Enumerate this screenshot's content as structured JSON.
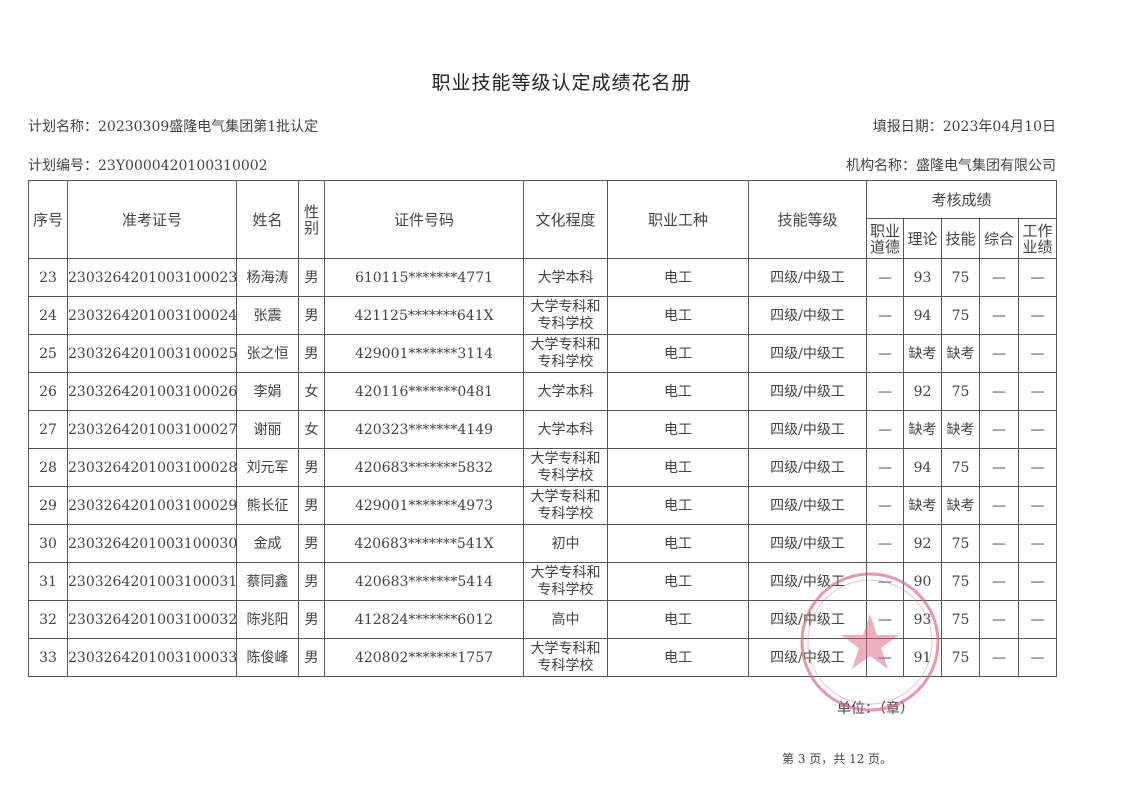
{
  "title": "职业技能等级认定成绩花名册",
  "plan_name": "计划名称：20230309盛隆电气集团第1批认定",
  "report_date": "填报日期：2023年04月10日",
  "plan_number": "计划编号：23Y0000420100310002",
  "org_name": "机构名称：盛隆电气集团有限公司",
  "headers": {
    "seq": "序号",
    "ticket": "准考证号",
    "name": "姓名",
    "gender": "性别",
    "id": "证件号码",
    "education": "文化程度",
    "occupation": "职业工种",
    "level": "技能等级",
    "scores": "考核成绩",
    "ethics": "职业道德",
    "theory": "理论",
    "skill": "技能",
    "overall": "综合",
    "performance": "工作业绩"
  },
  "rows": [
    {
      "seq": "23",
      "ticket": "2303264201003100023",
      "name": "杨海涛",
      "gender": "男",
      "id": "610115*******4771",
      "education": "大学本科",
      "occupation": "电工",
      "level": "四级/中级工",
      "ethics": "—",
      "theory": "93",
      "skill": "75",
      "overall": "—",
      "performance": "—"
    },
    {
      "seq": "24",
      "ticket": "2303264201003100024",
      "name": "张震",
      "gender": "男",
      "id": "421125*******641X",
      "education": "大学专科和专科学校",
      "occupation": "电工",
      "level": "四级/中级工",
      "ethics": "—",
      "theory": "94",
      "skill": "75",
      "overall": "—",
      "performance": "—"
    },
    {
      "seq": "25",
      "ticket": "2303264201003100025",
      "name": "张之恒",
      "gender": "男",
      "id": "429001*******3114",
      "education": "大学专科和专科学校",
      "occupation": "电工",
      "level": "四级/中级工",
      "ethics": "—",
      "theory": "缺考",
      "skill": "缺考",
      "overall": "—",
      "performance": "—"
    },
    {
      "seq": "26",
      "ticket": "2303264201003100026",
      "name": "李娟",
      "gender": "女",
      "id": "420116*******0481",
      "education": "大学本科",
      "occupation": "电工",
      "level": "四级/中级工",
      "ethics": "—",
      "theory": "92",
      "skill": "75",
      "overall": "—",
      "performance": "—"
    },
    {
      "seq": "27",
      "ticket": "2303264201003100027",
      "name": "谢丽",
      "gender": "女",
      "id": "420323*******4149",
      "education": "大学本科",
      "occupation": "电工",
      "level": "四级/中级工",
      "ethics": "—",
      "theory": "缺考",
      "skill": "缺考",
      "overall": "—",
      "performance": "—"
    },
    {
      "seq": "28",
      "ticket": "2303264201003100028",
      "name": "刘元军",
      "gender": "男",
      "id": "420683*******5832",
      "education": "大学专科和专科学校",
      "occupation": "电工",
      "level": "四级/中级工",
      "ethics": "—",
      "theory": "94",
      "skill": "75",
      "overall": "—",
      "performance": "—"
    },
    {
      "seq": "29",
      "ticket": "2303264201003100029",
      "name": "熊长征",
      "gender": "男",
      "id": "429001*******4973",
      "education": "大学专科和专科学校",
      "occupation": "电工",
      "level": "四级/中级工",
      "ethics": "—",
      "theory": "缺考",
      "skill": "缺考",
      "overall": "—",
      "performance": "—"
    },
    {
      "seq": "30",
      "ticket": "2303264201003100030",
      "name": "金成",
      "gender": "男",
      "id": "420683*******541X",
      "education": "初中",
      "occupation": "电工",
      "level": "四级/中级工",
      "ethics": "—",
      "theory": "92",
      "skill": "75",
      "overall": "—",
      "performance": "—"
    },
    {
      "seq": "31",
      "ticket": "2303264201003100031",
      "name": "蔡同鑫",
      "gender": "男",
      "id": "420683*******5414",
      "education": "大学专科和专科学校",
      "occupation": "电工",
      "level": "四级/中级工",
      "ethics": "—",
      "theory": "90",
      "skill": "75",
      "overall": "—",
      "performance": "—"
    },
    {
      "seq": "32",
      "ticket": "2303264201003100032",
      "name": "陈兆阳",
      "gender": "男",
      "id": "412824*******6012",
      "education": "高中",
      "occupation": "电工",
      "level": "四级/中级工",
      "ethics": "—",
      "theory": "93",
      "skill": "75",
      "overall": "—",
      "performance": "—"
    },
    {
      "seq": "33",
      "ticket": "2303264201003100033",
      "name": "陈俊峰",
      "gender": "男",
      "id": "420802*******1757",
      "education": "大学专科和专科学校",
      "occupation": "电工",
      "level": "四级/中级工",
      "ethics": "—",
      "theory": "91",
      "skill": "75",
      "overall": "—",
      "performance": "—"
    }
  ],
  "unit_seal": "单位：（章）",
  "page_info": "第 3 页，共 12 页。",
  "stamp": {
    "text": "盛隆电气集团有限公司",
    "color": "#d9607a"
  }
}
